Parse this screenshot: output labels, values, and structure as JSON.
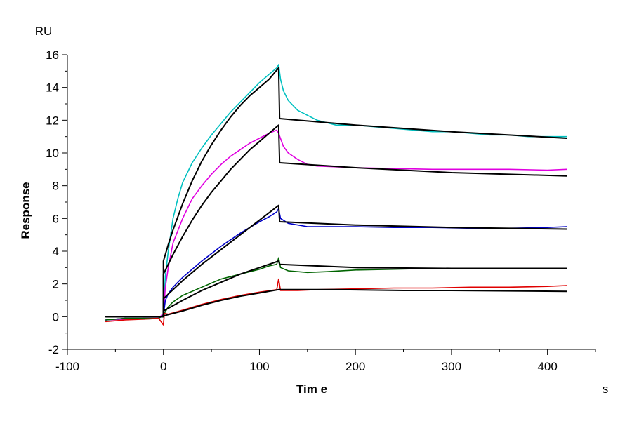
{
  "chart_data": {
    "type": "line",
    "title": "",
    "xlabel": "Tim e",
    "ylabel": "Response",
    "x_unit": "s",
    "y_unit": "RU",
    "xlim": [
      -100,
      450
    ],
    "ylim": [
      -2,
      16
    ],
    "x_ticks": [
      -100,
      0,
      100,
      200,
      300,
      400
    ],
    "y_ticks": [
      -2,
      0,
      2,
      4,
      6,
      8,
      10,
      12,
      14,
      16
    ],
    "grid": false,
    "legend": "none",
    "series": [
      {
        "color": "#00c0c0",
        "kind": "measured",
        "points": [
          [
            -60,
            -0.2
          ],
          [
            -40,
            -0.1
          ],
          [
            -20,
            -0.15
          ],
          [
            -5,
            -0.1
          ],
          [
            0,
            0.2
          ],
          [
            2,
            2.5
          ],
          [
            5,
            4.0
          ],
          [
            10,
            6.0
          ],
          [
            15,
            7.2
          ],
          [
            20,
            8.2
          ],
          [
            30,
            9.4
          ],
          [
            40,
            10.3
          ],
          [
            50,
            11.1
          ],
          [
            60,
            11.8
          ],
          [
            70,
            12.5
          ],
          [
            80,
            13.1
          ],
          [
            90,
            13.7
          ],
          [
            100,
            14.3
          ],
          [
            110,
            14.8
          ],
          [
            118,
            15.2
          ],
          [
            120,
            15.4
          ],
          [
            122,
            14.5
          ],
          [
            125,
            13.8
          ],
          [
            130,
            13.2
          ],
          [
            140,
            12.6
          ],
          [
            150,
            12.3
          ],
          [
            160,
            12.0
          ],
          [
            180,
            11.7
          ],
          [
            200,
            11.7
          ],
          [
            220,
            11.6
          ],
          [
            240,
            11.5
          ],
          [
            260,
            11.4
          ],
          [
            280,
            11.3
          ],
          [
            300,
            11.3
          ],
          [
            320,
            11.2
          ],
          [
            340,
            11.1
          ],
          [
            360,
            11.1
          ],
          [
            380,
            11.0
          ],
          [
            400,
            11.0
          ],
          [
            420,
            11.0
          ]
        ]
      },
      {
        "color": "#e000e0",
        "kind": "measured",
        "points": [
          [
            -60,
            -0.2
          ],
          [
            -40,
            -0.15
          ],
          [
            -20,
            -0.1
          ],
          [
            -5,
            -0.1
          ],
          [
            0,
            0.2
          ],
          [
            2,
            1.8
          ],
          [
            5,
            3.0
          ],
          [
            10,
            4.5
          ],
          [
            20,
            6.0
          ],
          [
            30,
            7.2
          ],
          [
            40,
            8.0
          ],
          [
            50,
            8.7
          ],
          [
            60,
            9.3
          ],
          [
            70,
            9.8
          ],
          [
            80,
            10.2
          ],
          [
            90,
            10.6
          ],
          [
            100,
            10.9
          ],
          [
            110,
            11.2
          ],
          [
            118,
            11.4
          ],
          [
            120,
            11.2
          ],
          [
            125,
            10.4
          ],
          [
            130,
            10.0
          ],
          [
            140,
            9.6
          ],
          [
            150,
            9.3
          ],
          [
            160,
            9.2
          ],
          [
            180,
            9.15
          ],
          [
            200,
            9.1
          ],
          [
            240,
            9.05
          ],
          [
            280,
            9.0
          ],
          [
            320,
            9.0
          ],
          [
            360,
            9.0
          ],
          [
            400,
            8.95
          ],
          [
            420,
            9.0
          ]
        ]
      },
      {
        "color": "#0000c8",
        "kind": "measured",
        "points": [
          [
            -60,
            -0.2
          ],
          [
            -40,
            -0.1
          ],
          [
            -20,
            -0.1
          ],
          [
            -5,
            -0.1
          ],
          [
            0,
            0.1
          ],
          [
            2,
            1.0
          ],
          [
            5,
            1.4
          ],
          [
            10,
            1.8
          ],
          [
            20,
            2.4
          ],
          [
            40,
            3.4
          ],
          [
            60,
            4.3
          ],
          [
            80,
            5.1
          ],
          [
            100,
            5.8
          ],
          [
            110,
            6.1
          ],
          [
            118,
            6.4
          ],
          [
            120,
            6.6
          ],
          [
            122,
            6.0
          ],
          [
            130,
            5.7
          ],
          [
            150,
            5.5
          ],
          [
            180,
            5.5
          ],
          [
            200,
            5.5
          ],
          [
            240,
            5.45
          ],
          [
            280,
            5.45
          ],
          [
            320,
            5.4
          ],
          [
            360,
            5.4
          ],
          [
            400,
            5.45
          ],
          [
            420,
            5.5
          ]
        ]
      },
      {
        "color": "#006400",
        "kind": "measured",
        "points": [
          [
            -60,
            -0.2
          ],
          [
            -40,
            -0.1
          ],
          [
            -20,
            -0.1
          ],
          [
            -5,
            -0.1
          ],
          [
            0,
            0.1
          ],
          [
            5,
            0.6
          ],
          [
            10,
            0.9
          ],
          [
            20,
            1.3
          ],
          [
            40,
            1.8
          ],
          [
            60,
            2.3
          ],
          [
            80,
            2.6
          ],
          [
            100,
            2.9
          ],
          [
            110,
            3.1
          ],
          [
            118,
            3.2
          ],
          [
            120,
            3.6
          ],
          [
            122,
            3.0
          ],
          [
            130,
            2.8
          ],
          [
            150,
            2.7
          ],
          [
            170,
            2.75
          ],
          [
            200,
            2.85
          ],
          [
            240,
            2.9
          ],
          [
            280,
            2.95
          ],
          [
            320,
            2.95
          ],
          [
            360,
            2.95
          ],
          [
            400,
            2.95
          ],
          [
            420,
            2.95
          ]
        ]
      },
      {
        "color": "#e00000",
        "kind": "measured",
        "points": [
          [
            -60,
            -0.3
          ],
          [
            -40,
            -0.2
          ],
          [
            -20,
            -0.15
          ],
          [
            -5,
            -0.1
          ],
          [
            0,
            -0.5
          ],
          [
            1,
            0.2
          ],
          [
            5,
            0.15
          ],
          [
            20,
            0.4
          ],
          [
            40,
            0.75
          ],
          [
            60,
            1.05
          ],
          [
            80,
            1.3
          ],
          [
            100,
            1.5
          ],
          [
            118,
            1.65
          ],
          [
            120,
            2.3
          ],
          [
            122,
            1.6
          ],
          [
            140,
            1.6
          ],
          [
            160,
            1.65
          ],
          [
            200,
            1.7
          ],
          [
            240,
            1.75
          ],
          [
            280,
            1.75
          ],
          [
            320,
            1.8
          ],
          [
            360,
            1.8
          ],
          [
            400,
            1.85
          ],
          [
            420,
            1.9
          ]
        ]
      },
      {
        "color": "#000000",
        "kind": "fit",
        "points": [
          [
            -60,
            0.0
          ],
          [
            0,
            0.0
          ],
          [
            0,
            3.4
          ],
          [
            5,
            4.4
          ],
          [
            10,
            5.3
          ],
          [
            20,
            6.9
          ],
          [
            30,
            8.3
          ],
          [
            40,
            9.5
          ],
          [
            50,
            10.5
          ],
          [
            60,
            11.4
          ],
          [
            70,
            12.2
          ],
          [
            80,
            12.9
          ],
          [
            90,
            13.5
          ],
          [
            100,
            14.0
          ],
          [
            110,
            14.5
          ],
          [
            120,
            15.2
          ],
          [
            121,
            12.1
          ],
          [
            200,
            11.7
          ],
          [
            300,
            11.3
          ],
          [
            420,
            10.9
          ]
        ]
      },
      {
        "color": "#000000",
        "kind": "fit",
        "points": [
          [
            -60,
            0.0
          ],
          [
            0,
            0.0
          ],
          [
            0,
            2.6
          ],
          [
            10,
            3.8
          ],
          [
            20,
            4.9
          ],
          [
            30,
            5.9
          ],
          [
            40,
            6.8
          ],
          [
            50,
            7.6
          ],
          [
            60,
            8.3
          ],
          [
            70,
            9.0
          ],
          [
            80,
            9.6
          ],
          [
            90,
            10.2
          ],
          [
            100,
            10.7
          ],
          [
            110,
            11.2
          ],
          [
            120,
            11.7
          ],
          [
            121,
            9.4
          ],
          [
            200,
            9.1
          ],
          [
            300,
            8.8
          ],
          [
            420,
            8.6
          ]
        ]
      },
      {
        "color": "#000000",
        "kind": "fit",
        "points": [
          [
            -60,
            0.0
          ],
          [
            0,
            0.0
          ],
          [
            0,
            1.1
          ],
          [
            20,
            2.2
          ],
          [
            40,
            3.2
          ],
          [
            60,
            4.1
          ],
          [
            80,
            5.0
          ],
          [
            100,
            5.9
          ],
          [
            120,
            6.8
          ],
          [
            121,
            5.8
          ],
          [
            200,
            5.6
          ],
          [
            300,
            5.45
          ],
          [
            420,
            5.35
          ]
        ]
      },
      {
        "color": "#000000",
        "kind": "fit",
        "points": [
          [
            -60,
            0.0
          ],
          [
            0,
            0.0
          ],
          [
            0,
            0.35
          ],
          [
            20,
            1.0
          ],
          [
            40,
            1.6
          ],
          [
            60,
            2.1
          ],
          [
            80,
            2.6
          ],
          [
            100,
            3.0
          ],
          [
            120,
            3.4
          ],
          [
            121,
            3.2
          ],
          [
            200,
            3.0
          ],
          [
            300,
            2.95
          ],
          [
            420,
            2.95
          ]
        ]
      },
      {
        "color": "#000000",
        "kind": "fit",
        "points": [
          [
            -60,
            0.0
          ],
          [
            0,
            0.0
          ],
          [
            0,
            0.05
          ],
          [
            20,
            0.35
          ],
          [
            40,
            0.7
          ],
          [
            60,
            1.0
          ],
          [
            80,
            1.25
          ],
          [
            100,
            1.45
          ],
          [
            120,
            1.65
          ],
          [
            180,
            1.65
          ],
          [
            250,
            1.6
          ],
          [
            300,
            1.6
          ],
          [
            420,
            1.55
          ]
        ]
      }
    ]
  }
}
